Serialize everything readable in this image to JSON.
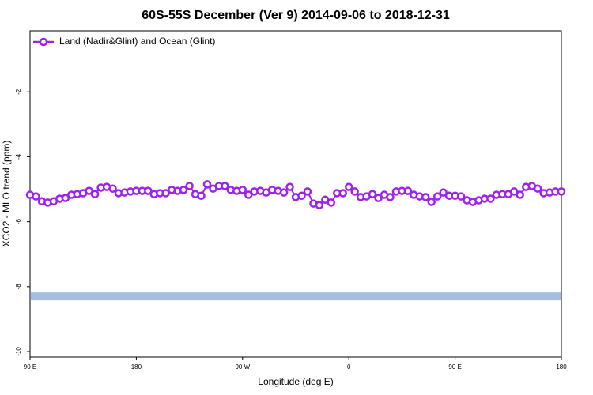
{
  "chart_data": {
    "type": "line",
    "title": "60S-55S December (Ver 9)   2014-09-06 to 2018-12-31",
    "xlabel": "Longitude (deg E)",
    "ylabel": "XCO2 - MLO trend (ppm)",
    "x": [
      90,
      95,
      100,
      105,
      110,
      115,
      120,
      125,
      130,
      135,
      140,
      145,
      150,
      155,
      160,
      165,
      170,
      175,
      180,
      185,
      190,
      195,
      200,
      205,
      210,
      215,
      220,
      225,
      230,
      235,
      240,
      245,
      250,
      255,
      260,
      265,
      270,
      275,
      280,
      285,
      290,
      295,
      300,
      305,
      310,
      315,
      320,
      325,
      330,
      335,
      340,
      345,
      350,
      355,
      360,
      365,
      370,
      375,
      380,
      385,
      390,
      395,
      400,
      405,
      410,
      415,
      420,
      425,
      430,
      435,
      440,
      445,
      450,
      455,
      460,
      465,
      470,
      475,
      480,
      485,
      490,
      495,
      500,
      505,
      510,
      515,
      520,
      525,
      530,
      535,
      540
    ],
    "series": [
      {
        "name": "Land (Nadir&Glint) and Ocean (Glint)",
        "color": "#a020f0",
        "values": [
          -5.17,
          -5.22,
          -5.37,
          -5.41,
          -5.37,
          -5.29,
          -5.27,
          -5.17,
          -5.15,
          -5.12,
          -5.05,
          -5.15,
          -4.95,
          -4.93,
          -4.98,
          -5.12,
          -5.1,
          -5.07,
          -5.05,
          -5.05,
          -5.05,
          -5.15,
          -5.12,
          -5.12,
          -5.02,
          -5.05,
          -5.02,
          -4.9,
          -5.15,
          -5.2,
          -4.85,
          -4.98,
          -4.9,
          -4.9,
          -5.02,
          -5.05,
          -5.02,
          -5.17,
          -5.07,
          -5.05,
          -5.1,
          -5.02,
          -5.05,
          -5.1,
          -4.93,
          -5.24,
          -5.2,
          -5.07,
          -5.44,
          -5.49,
          -5.32,
          -5.41,
          -5.12,
          -5.12,
          -4.93,
          -5.07,
          -5.24,
          -5.22,
          -5.15,
          -5.27,
          -5.17,
          -5.24,
          -5.07,
          -5.05,
          -5.05,
          -5.17,
          -5.22,
          -5.24,
          -5.39,
          -5.22,
          -5.1,
          -5.2,
          -5.2,
          -5.22,
          -5.34,
          -5.39,
          -5.34,
          -5.29,
          -5.29,
          -5.17,
          -5.15,
          -5.15,
          -5.07,
          -5.17,
          -4.93,
          -4.9,
          -4.98,
          -5.12,
          -5.1,
          -5.07,
          -5.07
        ]
      }
    ],
    "band": {
      "value": -8.3,
      "color": "#a4bde0"
    },
    "xlim": [
      90,
      540
    ],
    "xticks": [
      {
        "value": 90,
        "label": "90 E"
      },
      {
        "value": 180,
        "label": "180"
      },
      {
        "value": 270,
        "label": "90 W"
      },
      {
        "value": 360,
        "label": "0"
      },
      {
        "value": 450,
        "label": "90 E"
      },
      {
        "value": 540,
        "label": "180"
      }
    ],
    "ylim": [
      -10.17,
      -0.12
    ],
    "yticks": [
      -2,
      -4,
      -6,
      -8,
      -10
    ],
    "legend": "upper-left"
  }
}
